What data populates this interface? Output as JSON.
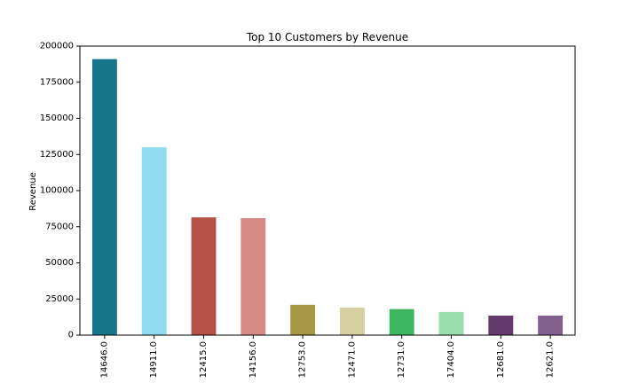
{
  "chart_data": {
    "type": "bar",
    "title": "Top 10 Customers by Revenue",
    "xlabel": "",
    "ylabel": "Revenue",
    "categories": [
      "14646.0",
      "14911.0",
      "12415.0",
      "14156.0",
      "12753.0",
      "12471.0",
      "12731.0",
      "17404.0",
      "12681.0",
      "12621.0"
    ],
    "values": [
      191000,
      130000,
      81500,
      81000,
      21000,
      19000,
      18000,
      16000,
      13500,
      13500
    ],
    "colors": [
      "#16758b",
      "#8fdcf0",
      "#b55246",
      "#d68c84",
      "#a89845",
      "#d6cf9f",
      "#3db660",
      "#99dfae",
      "#643a6c",
      "#84608f"
    ],
    "ylim": [
      0,
      200000
    ],
    "yticks": [
      0,
      25000,
      50000,
      75000,
      100000,
      125000,
      150000,
      175000,
      200000
    ],
    "grid": false,
    "legend": "none"
  }
}
